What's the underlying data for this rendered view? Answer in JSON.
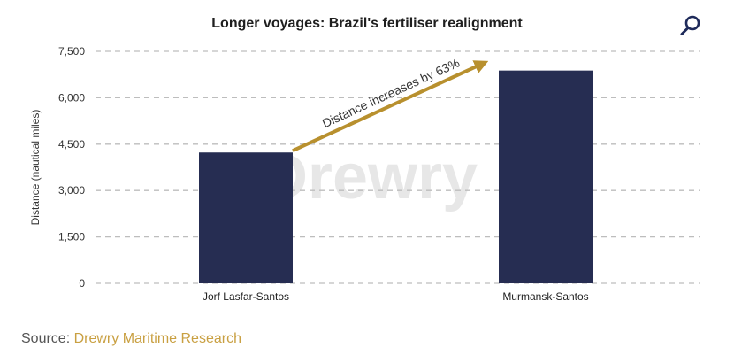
{
  "chart_data": {
    "type": "bar",
    "title": "Longer voyages: Brazil's fertiliser realignment",
    "ylabel": "Distance (nautical miles)",
    "xlabel": "",
    "categories": [
      "Jorf Lasfar-Santos",
      "Murmansk-Santos"
    ],
    "values": [
      4230,
      6880
    ],
    "ylim": [
      0,
      7500
    ],
    "yticks": [
      0,
      1500,
      3000,
      4500,
      6000,
      7500
    ],
    "ytick_labels": [
      "0",
      "1,500",
      "3,000",
      "4,500",
      "6,000",
      "7,500"
    ],
    "grid": true,
    "legend": "none",
    "annotation": "Distance increases by 63%",
    "watermark": "Drewry",
    "colors": {
      "bar": "#262d52",
      "arrow": "#b8902e",
      "grid": "#bdbdbd",
      "watermark": "#e7e7e7"
    }
  },
  "search": {
    "icon": "search-icon",
    "color": "#1e2a5a"
  },
  "source": {
    "prefix": "Source: ",
    "link": "Drewry Maritime Research"
  }
}
